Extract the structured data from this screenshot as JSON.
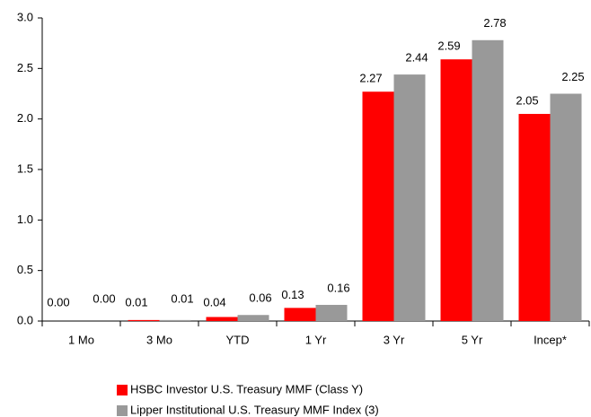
{
  "chart_data": {
    "type": "bar",
    "categories": [
      "1 Mo",
      "3 Mo",
      "YTD",
      "1 Yr",
      "3 Yr",
      "5 Yr",
      "Incep*"
    ],
    "series": [
      {
        "name": "HSBC Investor U.S. Treasury MMF (Class Y)",
        "color": "#ff0000",
        "values": [
          0,
          0.01,
          0.04,
          0.13,
          2.27,
          2.59,
          2.05
        ],
        "value_labels": [
          "0.00",
          "0.01",
          "0.04",
          "0.13",
          "2.27",
          "2.59",
          "2.05"
        ]
      },
      {
        "name": "Lipper Institutional U.S. Treasury MMF Index (3)",
        "color": "#999999",
        "values": [
          0,
          0.01,
          0.06,
          0.16,
          2.44,
          2.78,
          2.25
        ],
        "value_labels": [
          "0.00",
          "0.01",
          "0.06",
          "0.16",
          "2.44",
          "2.78",
          "2.25"
        ]
      }
    ],
    "ylim": [
      0,
      3
    ],
    "yticks": [
      {
        "value": 0,
        "label": "0.0"
      },
      {
        "value": 0.5,
        "label": "0.5"
      },
      {
        "value": 1,
        "label": "1.0"
      },
      {
        "value": 1.5,
        "label": "1.5"
      },
      {
        "value": 2,
        "label": "2.0"
      },
      {
        "value": 2.5,
        "label": "2.5"
      },
      {
        "value": 3,
        "label": "3.0"
      }
    ],
    "grid": false
  }
}
